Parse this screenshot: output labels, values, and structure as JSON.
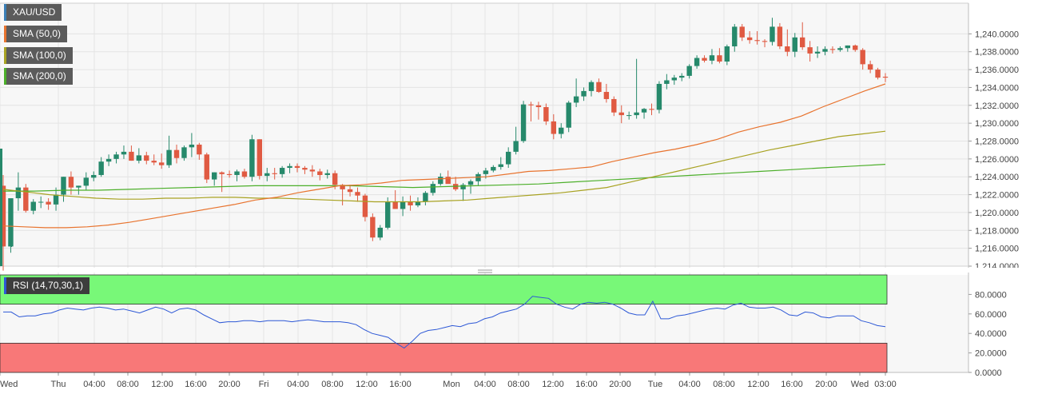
{
  "chart_data": [
    {
      "type": "candlestick",
      "symbol": "XAU/USD",
      "legend": [
        "XAU/USD",
        "SMA (50,0)",
        "SMA (100,0)",
        "SMA (200,0)"
      ],
      "ylim": [
        1214,
        1242
      ],
      "y_ticks": [
        "1,240.0000",
        "1,238.0000",
        "1,236.0000",
        "1,234.0000",
        "1,232.0000",
        "1,230.0000",
        "1,228.0000",
        "1,226.0000",
        "1,224.0000",
        "1,222.0000",
        "1,220.0000",
        "1,218.0000",
        "1,216.0000",
        "1,214.0000"
      ],
      "x_ticks": [
        "Wed",
        "Thu",
        "04:00",
        "08:00",
        "12:00",
        "16:00",
        "20:00",
        "Fri",
        "04:00",
        "08:00",
        "12:00",
        "16:00",
        "Mon",
        "04:00",
        "08:00",
        "12:00",
        "16:00",
        "20:00",
        "Tue",
        "04:00",
        "08:00",
        "12:00",
        "16:00",
        "20:00",
        "Wed",
        "03:00"
      ],
      "candles": [
        [
          1223.0,
          1224.2,
          1213.5,
          1216.2
        ],
        [
          1216.2,
          1221.5,
          1215.5,
          1221.6
        ],
        [
          1221.6,
          1224.5,
          1220.2,
          1222.8
        ],
        [
          1222.8,
          1223.2,
          1220.0,
          1220.2
        ],
        [
          1220.2,
          1221.5,
          1219.8,
          1221.2
        ],
        [
          1221.2,
          1221.8,
          1220.5,
          1221.2
        ],
        [
          1221.2,
          1221.6,
          1220.3,
          1220.9
        ],
        [
          1220.9,
          1222.8,
          1220.2,
          1222.0
        ],
        [
          1222.0,
          1224.0,
          1221.2,
          1224.0
        ],
        [
          1224.0,
          1224.6,
          1222.0,
          1222.8
        ],
        [
          1222.8,
          1223.0,
          1222.0,
          1223.0
        ],
        [
          1223.0,
          1224.5,
          1222.5,
          1223.9
        ],
        [
          1223.9,
          1224.6,
          1223.5,
          1224.2
        ],
        [
          1224.2,
          1226.2,
          1224.0,
          1225.7
        ],
        [
          1225.7,
          1226.5,
          1225.2,
          1226.0
        ],
        [
          1226.0,
          1226.8,
          1225.5,
          1226.5
        ],
        [
          1226.5,
          1227.5,
          1226.0,
          1226.8
        ],
        [
          1226.8,
          1227.5,
          1225.8,
          1225.8
        ],
        [
          1225.8,
          1227.2,
          1225.5,
          1226.4
        ],
        [
          1226.4,
          1226.8,
          1225.4,
          1225.8
        ],
        [
          1225.8,
          1226.5,
          1225.3,
          1225.6
        ],
        [
          1225.6,
          1226.6,
          1224.9,
          1225.3
        ],
        [
          1225.3,
          1228.6,
          1225.0,
          1227.0
        ],
        [
          1227.0,
          1227.6,
          1225.5,
          1226.1
        ],
        [
          1226.1,
          1227.5,
          1225.8,
          1227.3
        ],
        [
          1227.3,
          1228.9,
          1226.2,
          1227.6
        ],
        [
          1227.6,
          1227.8,
          1225.9,
          1226.5
        ],
        [
          1226.5,
          1226.7,
          1223.3,
          1223.7
        ],
        [
          1223.7,
          1224.5,
          1223.0,
          1224.5
        ],
        [
          1224.5,
          1224.6,
          1222.3,
          1224.3
        ],
        [
          1224.3,
          1224.7,
          1223.9,
          1224.2
        ],
        [
          1224.2,
          1224.8,
          1223.5,
          1224.6
        ],
        [
          1224.6,
          1224.9,
          1223.8,
          1224.0
        ],
        [
          1224.0,
          1228.7,
          1223.5,
          1228.2
        ],
        [
          1228.2,
          1228.2,
          1223.7,
          1224.1
        ],
        [
          1224.1,
          1225.0,
          1223.5,
          1224.4
        ],
        [
          1224.4,
          1225.0,
          1223.7,
          1224.3
        ],
        [
          1224.3,
          1225.2,
          1223.9,
          1225.0
        ],
        [
          1225.0,
          1225.5,
          1224.4,
          1225.2
        ],
        [
          1225.2,
          1225.5,
          1224.5,
          1225.0
        ],
        [
          1225.0,
          1225.2,
          1224.3,
          1224.8
        ],
        [
          1224.8,
          1225.3,
          1224.0,
          1224.6
        ],
        [
          1224.6,
          1224.9,
          1223.6,
          1224.2
        ],
        [
          1224.2,
          1224.8,
          1223.8,
          1224.4
        ],
        [
          1224.4,
          1224.7,
          1222.6,
          1223.1
        ],
        [
          1223.1,
          1223.2,
          1220.8,
          1222.6
        ],
        [
          1222.6,
          1223.1,
          1221.8,
          1222.3
        ],
        [
          1222.3,
          1222.8,
          1221.2,
          1221.9
        ],
        [
          1221.9,
          1222.1,
          1219.0,
          1219.5
        ],
        [
          1219.5,
          1219.9,
          1216.8,
          1217.2
        ],
        [
          1217.2,
          1218.6,
          1216.9,
          1218.3
        ],
        [
          1218.3,
          1221.7,
          1218.1,
          1221.2
        ],
        [
          1221.2,
          1222.5,
          1220.4,
          1220.4
        ],
        [
          1220.4,
          1221.8,
          1219.6,
          1221.2
        ],
        [
          1221.2,
          1221.9,
          1220.2,
          1220.8
        ],
        [
          1220.8,
          1221.7,
          1220.6,
          1221.2
        ],
        [
          1221.2,
          1222.4,
          1220.8,
          1222.2
        ],
        [
          1222.2,
          1223.5,
          1221.9,
          1223.2
        ],
        [
          1223.2,
          1224.4,
          1223.0,
          1224.0
        ],
        [
          1224.0,
          1224.7,
          1223.4,
          1223.2
        ],
        [
          1223.2,
          1224.0,
          1222.4,
          1222.6
        ],
        [
          1222.6,
          1223.3,
          1221.3,
          1223.1
        ],
        [
          1223.1,
          1223.7,
          1222.1,
          1223.5
        ],
        [
          1223.5,
          1224.5,
          1223.0,
          1224.3
        ],
        [
          1224.3,
          1225.0,
          1223.8,
          1224.7
        ],
        [
          1224.7,
          1225.3,
          1224.5,
          1225.1
        ],
        [
          1225.1,
          1226.2,
          1224.8,
          1225.4
        ],
        [
          1225.4,
          1227.3,
          1225.0,
          1226.8
        ],
        [
          1226.8,
          1229.6,
          1226.5,
          1228.0
        ],
        [
          1228.0,
          1232.5,
          1227.8,
          1232.1
        ],
        [
          1232.1,
          1232.4,
          1230.2,
          1232.0
        ],
        [
          1232.0,
          1232.4,
          1230.4,
          1231.8
        ],
        [
          1231.8,
          1232.2,
          1229.8,
          1230.2
        ],
        [
          1230.2,
          1231.0,
          1228.2,
          1228.8
        ],
        [
          1228.8,
          1230.0,
          1228.3,
          1229.5
        ],
        [
          1229.5,
          1232.5,
          1229.0,
          1232.3
        ],
        [
          1232.3,
          1235.0,
          1231.8,
          1233.0
        ],
        [
          1233.0,
          1234.0,
          1232.5,
          1233.6
        ],
        [
          1233.6,
          1234.8,
          1233.0,
          1234.6
        ],
        [
          1234.6,
          1235.0,
          1233.4,
          1233.5
        ],
        [
          1233.5,
          1234.4,
          1232.3,
          1232.7
        ],
        [
          1232.7,
          1233.0,
          1230.8,
          1231.2
        ],
        [
          1231.2,
          1232.0,
          1230.0,
          1230.9
        ],
        [
          1230.9,
          1231.3,
          1230.4,
          1230.9
        ],
        [
          1230.9,
          1237.2,
          1230.5,
          1231.2
        ],
        [
          1231.2,
          1231.7,
          1230.5,
          1231.6
        ],
        [
          1231.6,
          1232.2,
          1230.9,
          1231.5
        ],
        [
          1231.5,
          1234.7,
          1231.1,
          1234.4
        ],
        [
          1234.4,
          1235.5,
          1233.8,
          1234.8
        ],
        [
          1234.8,
          1235.4,
          1234.3,
          1235.1
        ],
        [
          1235.1,
          1235.6,
          1234.7,
          1235.3
        ],
        [
          1235.3,
          1236.6,
          1235.0,
          1236.4
        ],
        [
          1236.4,
          1237.6,
          1236.1,
          1237.3
        ],
        [
          1237.3,
          1237.6,
          1236.8,
          1237.0
        ],
        [
          1237.0,
          1238.3,
          1236.6,
          1237.6
        ],
        [
          1237.6,
          1238.4,
          1236.7,
          1236.9
        ],
        [
          1236.9,
          1238.8,
          1236.5,
          1238.6
        ],
        [
          1238.6,
          1241.1,
          1238.0,
          1240.8
        ],
        [
          1240.8,
          1241.1,
          1239.2,
          1239.6
        ],
        [
          1239.6,
          1240.3,
          1238.9,
          1239.3
        ],
        [
          1239.3,
          1240.3,
          1238.8,
          1239.2
        ],
        [
          1239.2,
          1239.4,
          1238.5,
          1239.1
        ],
        [
          1239.1,
          1241.8,
          1238.7,
          1240.8
        ],
        [
          1240.8,
          1241.2,
          1238.3,
          1238.6
        ],
        [
          1238.6,
          1240.5,
          1237.5,
          1238.0
        ],
        [
          1238.0,
          1240.1,
          1237.4,
          1239.6
        ],
        [
          1239.6,
          1241.3,
          1238.2,
          1238.5
        ],
        [
          1238.5,
          1239.2,
          1236.9,
          1237.8
        ],
        [
          1237.8,
          1238.6,
          1237.3,
          1238.0
        ],
        [
          1238.0,
          1238.6,
          1237.6,
          1238.3
        ],
        [
          1238.3,
          1238.6,
          1237.8,
          1238.2
        ],
        [
          1238.2,
          1238.6,
          1238.0,
          1238.4
        ],
        [
          1238.4,
          1238.7,
          1238.0,
          1238.7
        ],
        [
          1238.7,
          1238.8,
          1238.0,
          1238.2
        ],
        [
          1238.2,
          1238.4,
          1236.0,
          1236.6
        ],
        [
          1236.6,
          1237.0,
          1235.6,
          1236.0
        ],
        [
          1236.0,
          1236.2,
          1234.9,
          1235.1
        ],
        [
          1235.2,
          1235.6,
          1234.6,
          1235.1
        ]
      ],
      "sma_50": [
        1218.5,
        1218.4,
        1218.3,
        1218.3,
        1218.4,
        1218.6,
        1218.9,
        1219.3,
        1219.7,
        1220.1,
        1220.5,
        1220.9,
        1221.4,
        1221.7,
        1222.2,
        1222.6,
        1223.0,
        1223.1,
        1223.3,
        1223.6,
        1223.7,
        1223.8,
        1223.9,
        1224.0,
        1224.3,
        1224.6,
        1224.7,
        1224.9,
        1225.1,
        1225.7,
        1226.2,
        1226.7,
        1227.1,
        1227.6,
        1228.2,
        1229.0,
        1229.6,
        1230.1,
        1230.8,
        1231.8,
        1232.7,
        1233.6,
        1234.4
      ],
      "sma_100": [
        1222.6,
        1222.3,
        1222.0,
        1221.8,
        1221.6,
        1221.5,
        1221.5,
        1221.6,
        1221.6,
        1221.7,
        1221.7,
        1221.6,
        1221.6,
        1221.5,
        1221.4,
        1221.3,
        1221.2,
        1221.2,
        1221.2,
        1221.3,
        1221.4,
        1221.6,
        1221.8,
        1222.0,
        1222.2,
        1222.5,
        1222.8,
        1223.4,
        1224.0,
        1224.6,
        1225.2,
        1225.8,
        1226.4,
        1227.0,
        1227.5,
        1228.0,
        1228.5,
        1228.8,
        1229.1
      ],
      "sma_200": [
        1222.4,
        1222.4,
        1222.5,
        1222.5,
        1222.6,
        1222.7,
        1222.8,
        1222.9,
        1223.0,
        1223.0,
        1223.0,
        1223.0,
        1222.9,
        1222.8,
        1222.9,
        1223.0,
        1223.1,
        1223.2,
        1223.4,
        1223.6,
        1223.8,
        1224.0,
        1224.2,
        1224.4,
        1224.6,
        1224.8,
        1225.0,
        1225.2,
        1225.4
      ]
    },
    {
      "type": "line",
      "label": "RSI (14,70,30,1)",
      "ylim": [
        0,
        100
      ],
      "y_ticks": [
        "80.0000",
        "60.0000",
        "40.0000",
        "20.0000",
        "0.0000"
      ],
      "overbought": 70,
      "oversold": 30,
      "values": [
        62,
        62,
        57,
        58,
        58,
        60,
        61,
        64,
        66,
        65,
        64,
        66,
        67,
        66,
        64,
        65,
        63,
        61,
        64,
        67,
        65,
        61,
        65,
        66,
        64,
        59,
        55,
        51,
        52,
        52,
        53,
        53,
        52,
        53,
        53,
        53,
        52,
        53,
        54,
        53,
        52,
        52,
        52,
        51,
        49,
        44,
        40,
        38,
        36,
        30,
        25,
        32,
        40,
        43,
        44,
        46,
        48,
        47,
        50,
        51,
        55,
        57,
        61,
        63,
        65,
        70,
        78,
        77,
        76,
        70,
        67,
        65,
        70,
        72,
        71,
        72,
        70,
        66,
        61,
        59,
        59,
        73,
        55,
        55,
        58,
        59,
        61,
        63,
        65,
        66,
        65,
        69,
        71,
        67,
        66,
        66,
        67,
        64,
        59,
        58,
        62,
        61,
        57,
        56,
        58,
        58,
        58,
        53,
        51,
        48,
        47
      ]
    }
  ],
  "legend_items": [
    {
      "label": "XAU/USD",
      "color": "#3b7fb6"
    },
    {
      "label": "SMA (50,0)",
      "color": "#e8732e"
    },
    {
      "label": "SMA (100,0)",
      "color": "#a8a222"
    },
    {
      "label": "SMA (200,0)",
      "color": "#4caf2a"
    }
  ],
  "rsi_label": "RSI (14,70,30,1)",
  "colors": {
    "bull": "#26896b",
    "bear": "#e05a42",
    "sma50": "#e8732e",
    "sma100": "#a8a222",
    "sma200": "#4caf2a",
    "rsi_line": "#2d58d6",
    "overbought_zone": "#78f878",
    "oversold_zone": "#f87878"
  }
}
